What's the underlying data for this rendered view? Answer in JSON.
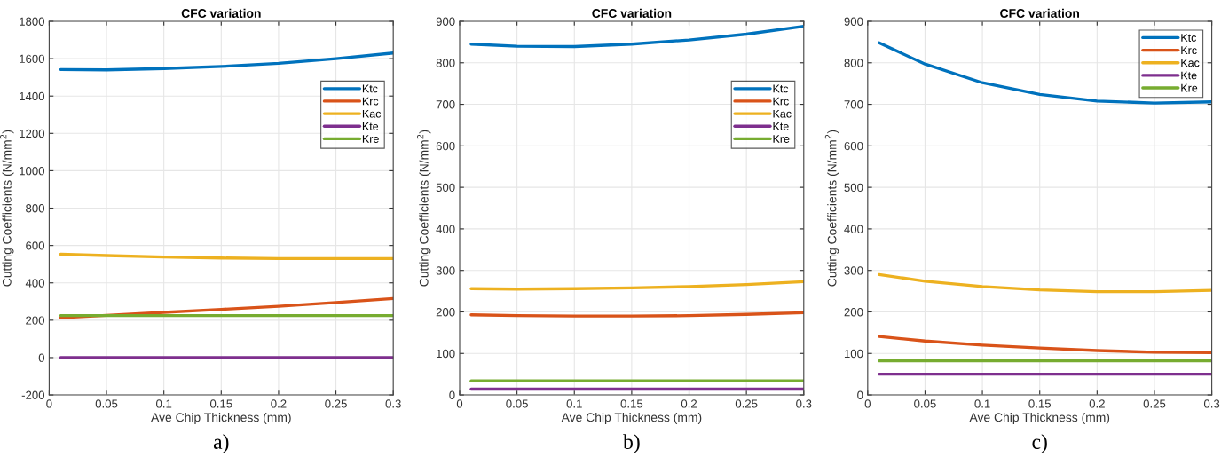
{
  "chart_data": [
    {
      "type": "line",
      "title": "CFC variation",
      "xlabel": "Ave Chip Thickness (mm)",
      "ylabel": "Cutting Coefficients (N/mm$^{2}$)",
      "annotations": [
        "a)"
      ],
      "x": [
        0.01,
        0.05,
        0.1,
        0.15,
        0.2,
        0.25,
        0.3
      ],
      "xlim": [
        0,
        0.3
      ],
      "xticks": [
        0,
        0.05,
        0.1,
        0.15,
        0.2,
        0.25,
        0.3
      ],
      "ylim": [
        -200,
        1800
      ],
      "yticks": [
        -200,
        0,
        200,
        400,
        600,
        800,
        1000,
        1200,
        1400,
        1600,
        1800
      ],
      "grid": true,
      "legend": "right",
      "series": [
        {
          "name": "Ktc",
          "color": "#0072bd",
          "values": [
            1542,
            1540,
            1547,
            1558,
            1575,
            1600,
            1630
          ]
        },
        {
          "name": "Krc",
          "color": "#d95319",
          "values": [
            213,
            226,
            242,
            258,
            275,
            295,
            316
          ]
        },
        {
          "name": "Kac",
          "color": "#edb120",
          "values": [
            553,
            546,
            538,
            533,
            530,
            530,
            530
          ]
        },
        {
          "name": "Kte",
          "color": "#7e2f8e",
          "values": [
            0,
            0,
            0,
            0,
            0,
            0,
            0
          ]
        },
        {
          "name": "Kre",
          "color": "#77ac30",
          "values": [
            225,
            225,
            225,
            225,
            225,
            225,
            225
          ]
        }
      ]
    },
    {
      "type": "line",
      "title": "CFC variation",
      "xlabel": "Ave Chip Thickness (mm)",
      "ylabel": "Cutting Coefficients (N/mm$^{2}$)",
      "annotations": [
        "b)"
      ],
      "x": [
        0.01,
        0.05,
        0.1,
        0.15,
        0.2,
        0.25,
        0.3
      ],
      "xlim": [
        0,
        0.3
      ],
      "xticks": [
        0,
        0.05,
        0.1,
        0.15,
        0.2,
        0.25,
        0.3
      ],
      "ylim": [
        0,
        900
      ],
      "yticks": [
        0,
        100,
        200,
        300,
        400,
        500,
        600,
        700,
        800,
        900
      ],
      "grid": true,
      "legend": "right",
      "series": [
        {
          "name": "Ktc",
          "color": "#0072bd",
          "values": [
            845,
            840,
            839,
            845,
            855,
            869,
            888
          ]
        },
        {
          "name": "Krc",
          "color": "#d95319",
          "values": [
            193,
            191,
            190,
            190,
            191,
            194,
            198
          ]
        },
        {
          "name": "Kac",
          "color": "#edb120",
          "values": [
            256,
            255,
            256,
            258,
            261,
            266,
            273
          ]
        },
        {
          "name": "Kte",
          "color": "#7e2f8e",
          "values": [
            14,
            14,
            14,
            14,
            14,
            14,
            14
          ]
        },
        {
          "name": "Kre",
          "color": "#77ac30",
          "values": [
            34,
            34,
            34,
            34,
            34,
            34,
            34
          ]
        }
      ]
    },
    {
      "type": "line",
      "title": "CFC variation",
      "xlabel": "Ave Chip Thickness (mm)",
      "ylabel": "Cutting Coefficients (N/mm$^{2}$)",
      "annotations": [
        "c)"
      ],
      "x": [
        0.01,
        0.05,
        0.1,
        0.15,
        0.2,
        0.25,
        0.3
      ],
      "xlim": [
        0,
        0.3
      ],
      "xticks": [
        0,
        0.05,
        0.1,
        0.15,
        0.2,
        0.25,
        0.3
      ],
      "ylim": [
        0,
        900
      ],
      "yticks": [
        0,
        100,
        200,
        300,
        400,
        500,
        600,
        700,
        800,
        900
      ],
      "grid": true,
      "legend": "top right",
      "series": [
        {
          "name": "Ktc",
          "color": "#0072bd",
          "values": [
            848,
            797,
            752,
            724,
            708,
            703,
            706
          ]
        },
        {
          "name": "Krc",
          "color": "#d95319",
          "values": [
            141,
            130,
            120,
            113,
            107,
            103,
            102
          ]
        },
        {
          "name": "Kac",
          "color": "#edb120",
          "values": [
            290,
            274,
            261,
            253,
            249,
            249,
            252
          ]
        },
        {
          "name": "Kte",
          "color": "#7e2f8e",
          "values": [
            50,
            50,
            50,
            50,
            50,
            50,
            50
          ]
        },
        {
          "name": "Kre",
          "color": "#77ac30",
          "values": [
            82,
            82,
            82,
            82,
            82,
            82,
            82
          ]
        }
      ]
    }
  ]
}
